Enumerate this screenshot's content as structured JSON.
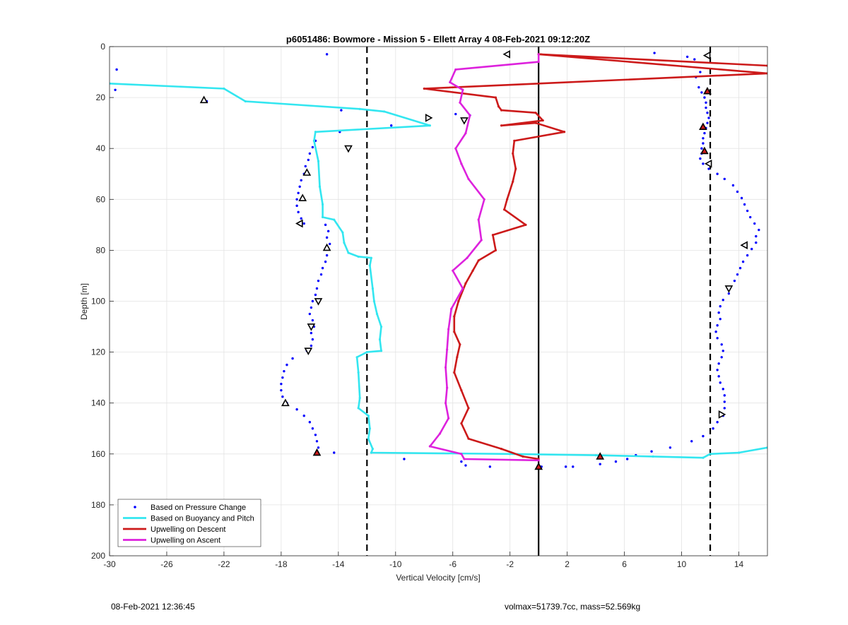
{
  "footer": {
    "timestamp": "08-Feb-2021 12:36:45",
    "stats": "volmax=51739.7cc, mass=52.569kg"
  },
  "chart_data": {
    "type": "line",
    "title": "p6051486: Bowmore - Mission 5 - Ellett Array 4 08-Feb-2021 09:12:20Z",
    "xlabel": "Vertical Velocity [cm/s]",
    "ylabel": "Depth [m]",
    "xlim": [
      -30,
      16
    ],
    "ylim": [
      0,
      200
    ],
    "y_reversed": true,
    "grid": true,
    "legend_position": "bottom-left",
    "x_ticks": [
      -30,
      -26,
      -22,
      -18,
      -14,
      -10,
      -6,
      -2,
      2,
      6,
      10,
      14
    ],
    "x_tick_labels": [
      "-30",
      "-26",
      "-22",
      "-18",
      "-14",
      "-10",
      "-6",
      "-2",
      "2",
      "6",
      "10",
      "14"
    ],
    "y_ticks": [
      0,
      20,
      40,
      60,
      80,
      100,
      120,
      140,
      160,
      180,
      200
    ],
    "y_tick_labels": [
      "0",
      "20",
      "40",
      "60",
      "80",
      "100",
      "120",
      "140",
      "160",
      "180",
      "200"
    ],
    "reference_lines": [
      {
        "x": -12,
        "style": "dashed",
        "color": "#000000"
      },
      {
        "x": 0,
        "style": "solid",
        "color": "#000000"
      },
      {
        "x": 12,
        "style": "dashed",
        "color": "#000000"
      }
    ],
    "series": [
      {
        "name": "Based on Pressure Change",
        "kind": "scatter",
        "color": "#0000ff",
        "points": [
          [
            -14.8,
            3
          ],
          [
            -29.5,
            9
          ],
          [
            -29.6,
            17
          ],
          [
            -23.2,
            21.5
          ],
          [
            -13.8,
            25
          ],
          [
            -10.3,
            31
          ],
          [
            -13.9,
            33.5
          ],
          [
            -15.6,
            37
          ],
          [
            -15.8,
            39.5
          ],
          [
            -16.0,
            42
          ],
          [
            -16.1,
            44.5
          ],
          [
            -16.3,
            47
          ],
          [
            -16.4,
            50
          ],
          [
            -16.6,
            52.5
          ],
          [
            -16.7,
            55
          ],
          [
            -16.8,
            57.5
          ],
          [
            -16.9,
            60
          ],
          [
            -16.9,
            62.5
          ],
          [
            -16.8,
            65
          ],
          [
            -16.6,
            67.5
          ],
          [
            -16.4,
            69.5
          ],
          [
            -14.9,
            70
          ],
          [
            -14.7,
            72.5
          ],
          [
            -14.8,
            75
          ],
          [
            -14.6,
            77.5
          ],
          [
            -14.8,
            82
          ],
          [
            -14.9,
            84.5
          ],
          [
            -15.1,
            87
          ],
          [
            -15.2,
            89.5
          ],
          [
            -15.4,
            92
          ],
          [
            -15.5,
            95
          ],
          [
            -15.6,
            97.5
          ],
          [
            -15.8,
            100
          ],
          [
            -15.9,
            102.5
          ],
          [
            -16.0,
            105
          ],
          [
            -15.8,
            107.5
          ],
          [
            -15.7,
            110
          ],
          [
            -15.9,
            112.5
          ],
          [
            -15.8,
            115
          ],
          [
            -15.9,
            117.5
          ],
          [
            -16.2,
            119.5
          ],
          [
            -17.2,
            122.5
          ],
          [
            -17.6,
            125
          ],
          [
            -17.8,
            127.5
          ],
          [
            -17.9,
            130
          ],
          [
            -18.0,
            132.5
          ],
          [
            -18.0,
            135
          ],
          [
            -17.9,
            137.5
          ],
          [
            -17.6,
            140
          ],
          [
            -16.9,
            142.5
          ],
          [
            -16.4,
            145
          ],
          [
            -16.0,
            147.5
          ],
          [
            -15.8,
            150
          ],
          [
            -15.6,
            152.5
          ],
          [
            -15.5,
            155
          ],
          [
            -15.4,
            157.5
          ],
          [
            -14.3,
            159.5
          ],
          [
            -9.4,
            162
          ],
          [
            -5.4,
            163
          ],
          [
            -5.1,
            164.5
          ],
          [
            -3.4,
            165
          ],
          [
            0.2,
            165
          ],
          [
            1.9,
            165
          ],
          [
            2.4,
            165
          ],
          [
            4.3,
            164
          ],
          [
            5.4,
            163
          ],
          [
            6.2,
            162
          ],
          [
            6.8,
            160.5
          ],
          [
            7.9,
            159
          ],
          [
            9.2,
            157.5
          ],
          [
            10.7,
            155
          ],
          [
            11.5,
            153
          ],
          [
            12.2,
            150
          ],
          [
            12.5,
            147.5
          ],
          [
            12.9,
            145
          ],
          [
            13.0,
            142
          ],
          [
            13.0,
            139.5
          ],
          [
            13.0,
            137
          ],
          [
            12.9,
            134.5
          ],
          [
            12.7,
            132
          ],
          [
            12.6,
            129.5
          ],
          [
            12.5,
            127
          ],
          [
            12.6,
            124.5
          ],
          [
            12.8,
            122
          ],
          [
            12.9,
            119.5
          ],
          [
            12.8,
            117
          ],
          [
            12.5,
            114.5
          ],
          [
            12.4,
            112
          ],
          [
            12.5,
            109.5
          ],
          [
            12.7,
            107
          ],
          [
            12.6,
            104.5
          ],
          [
            12.7,
            102
          ],
          [
            12.9,
            99.5
          ],
          [
            13.3,
            97
          ],
          [
            13.4,
            94.5
          ],
          [
            13.7,
            92
          ],
          [
            13.9,
            89.5
          ],
          [
            14.1,
            87
          ],
          [
            14.3,
            84.5
          ],
          [
            14.6,
            82
          ],
          [
            14.9,
            79.5
          ],
          [
            15.2,
            77
          ],
          [
            15.2,
            74.5
          ],
          [
            15.4,
            72
          ],
          [
            15.1,
            69.5
          ],
          [
            14.8,
            67
          ],
          [
            14.6,
            64.5
          ],
          [
            14.4,
            62
          ],
          [
            14.2,
            59.5
          ],
          [
            13.9,
            57
          ],
          [
            13.6,
            54.5
          ],
          [
            13.0,
            52
          ],
          [
            12.5,
            50
          ],
          [
            11.9,
            48
          ],
          [
            11.5,
            46
          ],
          [
            11.3,
            44
          ],
          [
            11.4,
            42
          ],
          [
            11.4,
            40
          ],
          [
            11.5,
            38
          ],
          [
            11.5,
            36
          ],
          [
            11.6,
            34
          ],
          [
            11.7,
            32
          ],
          [
            11.8,
            30
          ],
          [
            11.9,
            28
          ],
          [
            11.8,
            26
          ],
          [
            11.7,
            24
          ],
          [
            11.7,
            22
          ],
          [
            11.6,
            20
          ],
          [
            11.4,
            18
          ],
          [
            11.2,
            16
          ],
          [
            11.0,
            12
          ],
          [
            11.3,
            10
          ],
          [
            10.9,
            5
          ],
          [
            10.4,
            4
          ],
          [
            8.1,
            2.5
          ],
          [
            -2.3,
            3
          ],
          [
            -5.8,
            26.5
          ],
          [
            -4.8,
            27
          ]
        ]
      },
      {
        "name": "Based on Buoyancy and Pitch",
        "kind": "line",
        "color": "#33e6f0",
        "points": [
          [
            -30,
            14.5
          ],
          [
            -22,
            16.5
          ],
          [
            -20.5,
            21.5
          ],
          [
            -12.5,
            24.5
          ],
          [
            -10.8,
            25.5
          ],
          [
            -7.6,
            31
          ],
          [
            -15.6,
            33.5
          ],
          [
            -15.7,
            37
          ],
          [
            -15.4,
            45
          ],
          [
            -15.3,
            55
          ],
          [
            -15.1,
            62
          ],
          [
            -15.1,
            67
          ],
          [
            -14.3,
            68
          ],
          [
            -13.7,
            73
          ],
          [
            -13.6,
            77
          ],
          [
            -13.3,
            81
          ],
          [
            -12.6,
            82.5
          ],
          [
            -11.7,
            83
          ],
          [
            -11.8,
            86
          ],
          [
            -11.6,
            95
          ],
          [
            -11.5,
            100
          ],
          [
            -11.3,
            105
          ],
          [
            -11.0,
            110
          ],
          [
            -11.1,
            115
          ],
          [
            -11.0,
            119.5
          ],
          [
            -12.0,
            120
          ],
          [
            -12.7,
            122
          ],
          [
            -12.6,
            128
          ],
          [
            -12.5,
            138
          ],
          [
            -12.6,
            142
          ],
          [
            -11.9,
            145
          ],
          [
            -11.8,
            150
          ],
          [
            -11.9,
            154
          ],
          [
            -11.6,
            158
          ],
          [
            -11.7,
            159.5
          ],
          [
            -2,
            160
          ],
          [
            4,
            160.5
          ],
          [
            8,
            161
          ],
          [
            11.5,
            161.5
          ],
          [
            12.0,
            160
          ],
          [
            14,
            159.5
          ],
          [
            16,
            157.5
          ]
        ]
      },
      {
        "name": "Upwelling on Descent",
        "kind": "line",
        "color": "#cc1a1a",
        "points": [
          [
            0.0,
            3
          ],
          [
            16,
            7.5
          ],
          [
            0.0,
            3
          ],
          [
            16,
            10.5
          ],
          [
            -8.0,
            16.5
          ],
          [
            -3.0,
            20
          ],
          [
            -2.8,
            23.5
          ],
          [
            -2.6,
            25
          ],
          [
            -0.2,
            26
          ],
          [
            0.3,
            29
          ],
          [
            -2.6,
            31
          ],
          [
            -0.2,
            30
          ],
          [
            1.8,
            33.5
          ],
          [
            -1.7,
            37
          ],
          [
            -1.8,
            42
          ],
          [
            -1.6,
            48
          ],
          [
            -1.8,
            53
          ],
          [
            -2.2,
            60
          ],
          [
            -2.4,
            64
          ],
          [
            -0.9,
            70
          ],
          [
            -3.2,
            74
          ],
          [
            -3.0,
            80
          ],
          [
            -4.2,
            84
          ],
          [
            -4.6,
            88
          ],
          [
            -5.1,
            93
          ],
          [
            -5.6,
            100
          ],
          [
            -5.9,
            106
          ],
          [
            -5.9,
            112
          ],
          [
            -5.5,
            117
          ],
          [
            -5.7,
            122
          ],
          [
            -5.9,
            128
          ],
          [
            -5.4,
            135
          ],
          [
            -4.9,
            142
          ],
          [
            -5.4,
            148
          ],
          [
            -4.9,
            154
          ],
          [
            -2.6,
            158
          ],
          [
            -1.1,
            161
          ],
          [
            0.0,
            162
          ]
        ]
      },
      {
        "name": "Upwelling on Ascent",
        "kind": "line",
        "color": "#dd22dd",
        "points": [
          [
            0.0,
            3
          ],
          [
            0.0,
            6
          ],
          [
            -5.8,
            9
          ],
          [
            -6.2,
            14
          ],
          [
            -5.3,
            17
          ],
          [
            -5.5,
            22
          ],
          [
            -4.8,
            27
          ],
          [
            -5.1,
            34
          ],
          [
            -5.8,
            40
          ],
          [
            -5.4,
            46
          ],
          [
            -4.9,
            52
          ],
          [
            -3.8,
            60
          ],
          [
            -4.2,
            68
          ],
          [
            -4.0,
            76
          ],
          [
            -5.0,
            83
          ],
          [
            -6.0,
            88
          ],
          [
            -5.3,
            95
          ],
          [
            -6.1,
            103
          ],
          [
            -6.3,
            111
          ],
          [
            -6.4,
            119
          ],
          [
            -6.5,
            126
          ],
          [
            -6.4,
            134
          ],
          [
            -6.5,
            140
          ],
          [
            -6.3,
            146
          ],
          [
            -6.9,
            152
          ],
          [
            -7.6,
            157
          ],
          [
            -5.4,
            160
          ],
          [
            -5.2,
            162
          ],
          [
            0.0,
            162.5
          ]
        ]
      },
      {
        "name": "",
        "kind": "markers",
        "markers": [
          {
            "x": -2.2,
            "y": 3,
            "shape": "tri-left",
            "fill": "#ffffff"
          },
          {
            "x": 11.8,
            "y": 3.5,
            "shape": "tri-left",
            "fill": "#ffffff"
          },
          {
            "x": -23.4,
            "y": 21,
            "shape": "tri-up",
            "fill": "#ffffff"
          },
          {
            "x": -7.7,
            "y": 28,
            "shape": "tri-right",
            "fill": "#ffffff"
          },
          {
            "x": -5.2,
            "y": 29,
            "shape": "tri-down",
            "fill": "#ffffff"
          },
          {
            "x": -13.3,
            "y": 40,
            "shape": "tri-down",
            "fill": "#ffffff"
          },
          {
            "x": -16.2,
            "y": 49.5,
            "shape": "tri-up",
            "fill": "#ffffff"
          },
          {
            "x": -16.5,
            "y": 59.5,
            "shape": "tri-up",
            "fill": "#ffffff"
          },
          {
            "x": -16.7,
            "y": 69.5,
            "shape": "tri-left",
            "fill": "#ffffff"
          },
          {
            "x": -14.8,
            "y": 79,
            "shape": "tri-up",
            "fill": "#ffffff"
          },
          {
            "x": -15.4,
            "y": 100,
            "shape": "tri-down",
            "fill": "#ffffff"
          },
          {
            "x": -15.9,
            "y": 110,
            "shape": "tri-down",
            "fill": "#ffffff"
          },
          {
            "x": -16.1,
            "y": 119.5,
            "shape": "tri-down",
            "fill": "#ffffff"
          },
          {
            "x": -17.7,
            "y": 140,
            "shape": "tri-up",
            "fill": "#ffffff"
          },
          {
            "x": -15.5,
            "y": 159.5,
            "shape": "tri-up",
            "fill": "#cc1a1a"
          },
          {
            "x": 11.8,
            "y": 17.5,
            "shape": "tri-up",
            "fill": "#cc1a1a"
          },
          {
            "x": 11.5,
            "y": 31.5,
            "shape": "tri-up",
            "fill": "#cc1a1a"
          },
          {
            "x": 11.6,
            "y": 41,
            "shape": "tri-up",
            "fill": "#cc1a1a"
          },
          {
            "x": 11.9,
            "y": 46,
            "shape": "tri-left",
            "fill": "#ffffff"
          },
          {
            "x": 14.4,
            "y": 78,
            "shape": "tri-left",
            "fill": "#ffffff"
          },
          {
            "x": 13.3,
            "y": 95,
            "shape": "tri-down",
            "fill": "#ffffff"
          },
          {
            "x": 12.8,
            "y": 144.5,
            "shape": "tri-right",
            "fill": "#ffffff"
          },
          {
            "x": 4.3,
            "y": 161,
            "shape": "tri-up",
            "fill": "#cc1a1a"
          },
          {
            "x": 0.0,
            "y": 165,
            "shape": "tri-up",
            "fill": "#cc1a1a"
          }
        ]
      }
    ]
  }
}
